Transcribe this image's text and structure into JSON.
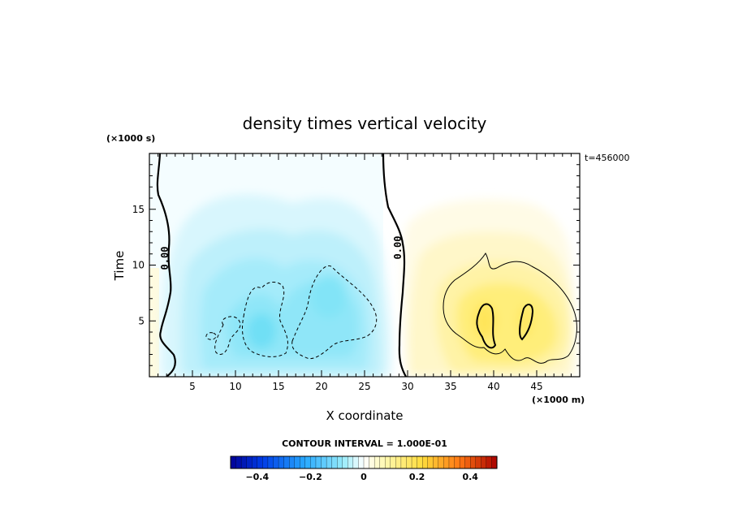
{
  "chart_data": {
    "type": "heatmap",
    "title": "density times vertical velocity",
    "xlabel": "X coordinate",
    "ylabel": "Time",
    "x_unit": "(×1000 m)",
    "y_unit": "(×1000 s)",
    "x_ticks": [
      5,
      10,
      15,
      20,
      25,
      30,
      35,
      40,
      45
    ],
    "y_ticks": [
      5,
      10,
      15
    ],
    "xlim": [
      0,
      50
    ],
    "ylim": [
      0,
      20
    ],
    "time_stamp": "t=456000",
    "contour_interval_text": "CONTOUR INTERVAL = 1.000E-01",
    "contour_label": "0.00",
    "colorbar": {
      "min": -0.5,
      "max": 0.5,
      "ticks": [
        "−0.4",
        "−0.2",
        "0",
        "0.2",
        "0.4"
      ],
      "tick_values": [
        -0.4,
        -0.2,
        0,
        0.2,
        0.4
      ]
    },
    "features": [
      {
        "sign": "negative",
        "x_range": [
          1,
          29
        ],
        "peak_x": 14,
        "peak_y": 4,
        "peak_value": -0.3
      },
      {
        "sign": "positive",
        "x_range": [
          30,
          50
        ],
        "peak_x": 40,
        "peak_y": 5,
        "peak_value": 0.2
      }
    ]
  }
}
